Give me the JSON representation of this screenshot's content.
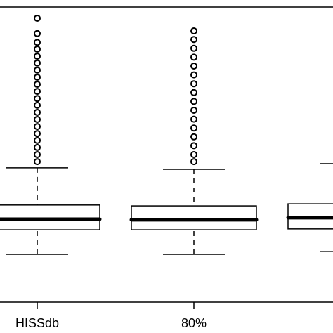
{
  "chart_data": {
    "type": "box",
    "categories": [
      "HISSdb",
      "80%",
      null
    ],
    "ylim": [
      0,
      100
    ],
    "boxes": [
      {
        "whisker_low": 16.2,
        "q1": 24.5,
        "median": 28.1,
        "q3": 32.9,
        "whisker_high": 45.5,
        "outliers": [
          96.2,
          91,
          88,
          85.7,
          83.3,
          81,
          78.6,
          76.2,
          73.8,
          71.4,
          69,
          66.7,
          64.3,
          61.9,
          59.5,
          57.1,
          54.8,
          52.4,
          50,
          47.6
        ]
      },
      {
        "whisker_low": 16.2,
        "q1": 24.5,
        "median": 27.9,
        "q3": 32.6,
        "whisker_high": 45,
        "outliers": [
          91.9,
          89,
          86,
          83,
          80,
          77,
          74,
          71,
          68,
          65,
          62,
          59,
          56,
          53,
          50,
          47.6
        ]
      },
      {
        "whisker_low": 17.1,
        "q1": 24.8,
        "median": 28.6,
        "q3": 33.3,
        "whisker_high": 46.9,
        "outliers": []
      }
    ]
  }
}
